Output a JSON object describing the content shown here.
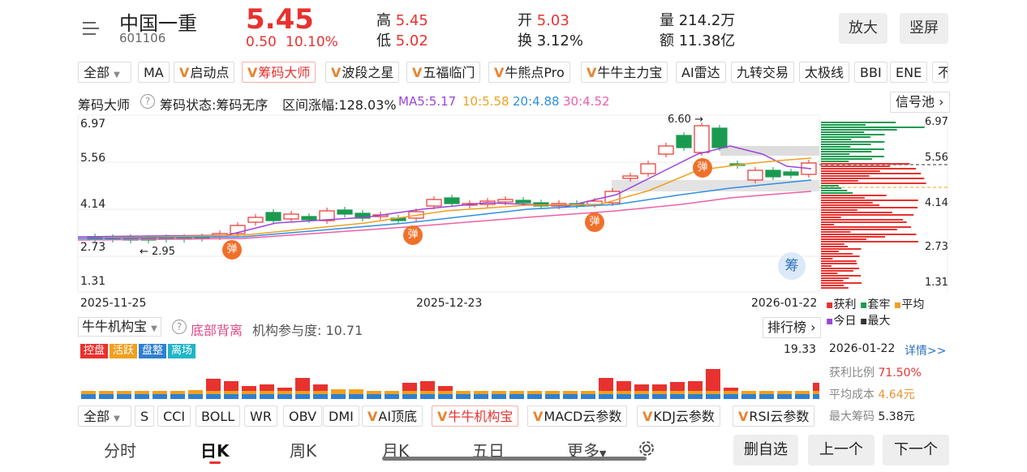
{
  "header": {
    "name": "中国一重",
    "code": "601106",
    "price": "5.45",
    "change": "0.50",
    "change_pct": "10.10%",
    "high_label": "高",
    "high": "5.45",
    "low_label": "低",
    "low": "5.02",
    "open_label": "开",
    "open": "5.03",
    "turnover_label": "换",
    "turnover": "3.12%",
    "volume_label": "量",
    "volume": "214.2万",
    "amount_label": "额",
    "amount": "11.38亿",
    "zoom_btn": "放大",
    "portrait_btn": "竖屏"
  },
  "indicator_tabs": {
    "all": "全部",
    "items": [
      "MA",
      "启动点",
      "筹码大师",
      "波段之星",
      "五福临门",
      "牛熊点Pro",
      "牛牛主力宝",
      "AI雷达",
      "九转交易",
      "太极线",
      "BBI",
      "ENE",
      "不"
    ]
  },
  "chip_info": {
    "title": "筹码大师",
    "status": "筹码状态:筹码无序",
    "range": "区间涨幅:128.03%",
    "ma5": "MA5:5.17",
    "ma10": "10:5.58",
    "ma20": "20:4.88",
    "ma30": "30:4.52",
    "signal_pool": "信号池"
  },
  "chart_data": {
    "type": "candlestick",
    "y_ticks": [
      "6.97",
      "5.56",
      "4.14",
      "2.73",
      "1.31"
    ],
    "right_ticks": [
      "6.97",
      "5.56",
      "4.14",
      "2.73",
      "1.31"
    ],
    "x_ticks": [
      "2025-11-25",
      "2025-12-23",
      "2026-01-22"
    ],
    "max_label": "6.60",
    "min_label": "2.95",
    "signal_label": "弹",
    "chip_button": "筹",
    "legend": [
      "获利",
      "套牢",
      "平均",
      "今日",
      "最大"
    ],
    "colors": {
      "up": "#e8322f",
      "down": "#1a9a50",
      "ma5": "#9b45d9",
      "ma10": "#f0a020",
      "ma20": "#2f8fe0",
      "ma30": "#ee5fa8"
    }
  },
  "sub_indicator": {
    "select": "牛牛机构宝",
    "signal": "底部背离",
    "participation": "机构参与度: 10.71",
    "rank": "排行榜",
    "tags": [
      "控盘",
      "活跃",
      "盘整",
      "离场"
    ],
    "max_value": "19.33"
  },
  "chip_panel": {
    "date": "2026-01-22",
    "detail": "详情>>",
    "profit_label": "获利比例",
    "profit_value": "71.50%",
    "avg_label": "平均成本",
    "avg_value": "4.64元",
    "max_label": "最大筹码",
    "max_value": "5.38元"
  },
  "bottom_tabs": {
    "all": "全部",
    "items": [
      "S",
      "CCI",
      "BOLL",
      "WR",
      "OBV",
      "DMI",
      "AI顶底",
      "牛牛机构宝",
      "MACD云参数",
      "KDJ云参数",
      "RSI云参数"
    ]
  },
  "period_tabs": [
    "分时",
    "日K",
    "周K",
    "月K",
    "五日",
    "更多"
  ],
  "actions": {
    "remove": "删自选",
    "prev": "上一个",
    "next": "下一个"
  }
}
